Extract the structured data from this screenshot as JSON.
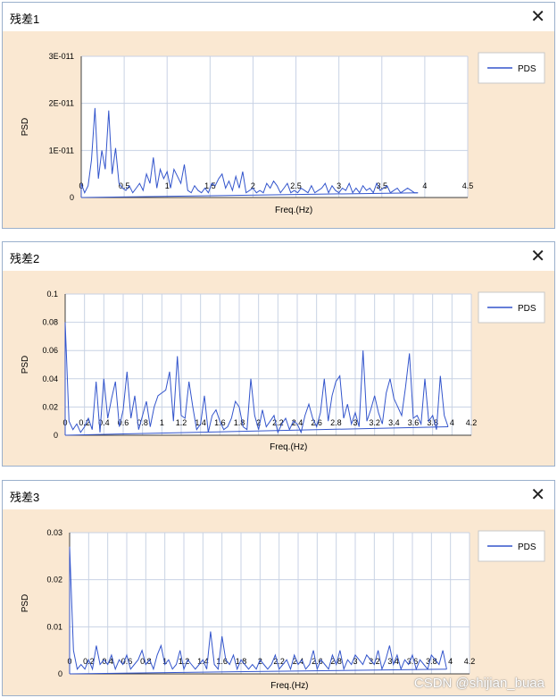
{
  "watermark": "CSDN @shijian_buaa",
  "colors": {
    "line": "#3355cc",
    "plot_bg": "#ffffff",
    "panel_bg": "#fae8d2",
    "grid": "#c8d2e4",
    "axis": "#404040"
  },
  "windows": [
    {
      "title": "残差1",
      "close_icon": "close-icon",
      "close_label": "✕"
    },
    {
      "title": "残差2",
      "close_icon": "close-icon",
      "close_label": "✕"
    },
    {
      "title": "残差3",
      "close_icon": "close-icon",
      "close_label": "✕"
    }
  ],
  "chart_data": [
    {
      "type": "line",
      "xlabel": "Freq.(Hz)",
      "ylabel": "PSD",
      "legend": "top-right",
      "grid": true,
      "xlim": [
        0,
        4.5
      ],
      "ylim": [
        0,
        3e-11
      ],
      "xticks": [
        {
          "v": 0,
          "label": "0"
        },
        {
          "v": 0.5,
          "label": "0.5"
        },
        {
          "v": 1,
          "label": "1"
        },
        {
          "v": 1.5,
          "label": "1.5"
        },
        {
          "v": 2,
          "label": "2"
        },
        {
          "v": 2.5,
          "label": "2.5"
        },
        {
          "v": 3,
          "label": "3"
        },
        {
          "v": 3.5,
          "label": "3.5"
        },
        {
          "v": 4,
          "label": "4"
        },
        {
          "v": 4.5,
          "label": "4.5"
        }
      ],
      "yticks": [
        {
          "v": 0,
          "label": "0"
        },
        {
          "v": 1e-11,
          "label": "1E-011"
        },
        {
          "v": 2e-11,
          "label": "2E-011"
        },
        {
          "v": 3e-11,
          "label": "3E-011"
        }
      ],
      "series": [
        {
          "name": "PDS",
          "x_start": 0,
          "x_step": 0.04,
          "values": [
            3e-12,
            1e-12,
            2.5e-12,
            8e-12,
            1.9e-11,
            4e-12,
            1e-11,
            6e-12,
            1.85e-11,
            5e-12,
            1.05e-11,
            3e-12,
            2e-12,
            1.5e-12,
            2.5e-12,
            1e-12,
            2e-12,
            3e-12,
            1.5e-12,
            5e-12,
            3e-12,
            8.5e-12,
            2e-12,
            6e-12,
            4e-12,
            5.5e-12,
            2e-12,
            6e-12,
            4.5e-12,
            3e-12,
            7e-12,
            1.5e-12,
            1e-12,
            2.5e-12,
            1.5e-12,
            1e-12,
            2e-12,
            1e-12,
            3e-12,
            2.5e-12,
            4e-12,
            5e-12,
            2e-12,
            3.5e-12,
            1.5e-12,
            4.5e-12,
            2e-12,
            5.5e-12,
            1e-12,
            1.5e-12,
            2e-12,
            1e-12,
            1.5e-12,
            1e-12,
            3e-12,
            2e-12,
            3.5e-12,
            2.5e-12,
            1e-12,
            2e-12,
            3e-12,
            1e-12,
            1.5e-12,
            1e-12,
            2e-12,
            1.5e-12,
            1e-12,
            2.5e-12,
            1e-12,
            1.5e-12,
            2e-12,
            3e-12,
            1e-12,
            2.5e-12,
            1.5e-12,
            1e-12,
            2e-12,
            1.5e-12,
            3e-12,
            1e-12,
            2e-12,
            1e-12,
            2.5e-12,
            1.5e-12,
            2e-12,
            1e-12,
            3e-12,
            1.5e-12,
            2e-12,
            2.5e-12,
            1e-12,
            1.5e-12,
            2e-12,
            1e-12,
            1.5e-12,
            2e-12,
            1.5e-12,
            1e-12,
            1e-12
          ]
        }
      ]
    },
    {
      "type": "line",
      "xlabel": "Freq.(Hz)",
      "ylabel": "PSD",
      "legend": "top-right",
      "grid": true,
      "xlim": [
        0,
        4.2
      ],
      "ylim": [
        0,
        0.1
      ],
      "xticks": [
        {
          "v": 0,
          "label": "0"
        },
        {
          "v": 0.2,
          "label": "0.2"
        },
        {
          "v": 0.4,
          "label": "0.4"
        },
        {
          "v": 0.6,
          "label": "0.6"
        },
        {
          "v": 0.8,
          "label": "0.8"
        },
        {
          "v": 1,
          "label": "1"
        },
        {
          "v": 1.2,
          "label": "1.2"
        },
        {
          "v": 1.4,
          "label": "1.4"
        },
        {
          "v": 1.6,
          "label": "1.6"
        },
        {
          "v": 1.8,
          "label": "1.8"
        },
        {
          "v": 2,
          "label": "2"
        },
        {
          "v": 2.2,
          "label": "2.2"
        },
        {
          "v": 2.4,
          "label": "2.4"
        },
        {
          "v": 2.6,
          "label": "2.6"
        },
        {
          "v": 2.8,
          "label": "2.8"
        },
        {
          "v": 3,
          "label": "3"
        },
        {
          "v": 3.2,
          "label": "3.2"
        },
        {
          "v": 3.4,
          "label": "3.4"
        },
        {
          "v": 3.6,
          "label": "3.6"
        },
        {
          "v": 3.8,
          "label": "3.8"
        },
        {
          "v": 4,
          "label": "4"
        },
        {
          "v": 4.2,
          "label": "4.2"
        }
      ],
      "yticks": [
        {
          "v": 0,
          "label": "0"
        },
        {
          "v": 0.02,
          "label": "0.02"
        },
        {
          "v": 0.04,
          "label": "0.04"
        },
        {
          "v": 0.06,
          "label": "0.06"
        },
        {
          "v": 0.08,
          "label": "0.08"
        },
        {
          "v": 0.1,
          "label": "0.1"
        }
      ],
      "series": [
        {
          "name": "PDS",
          "x_start": 0,
          "x_step": 0.04,
          "values": [
            0.08,
            0.01,
            0.004,
            0.008,
            0.002,
            0.006,
            0.012,
            0.004,
            0.038,
            0.002,
            0.04,
            0.012,
            0.026,
            0.038,
            0.006,
            0.018,
            0.045,
            0.012,
            0.028,
            0.004,
            0.014,
            0.024,
            0.006,
            0.02,
            0.028,
            0.03,
            0.032,
            0.045,
            0.01,
            0.056,
            0.014,
            0.012,
            0.038,
            0.02,
            0.004,
            0.008,
            0.028,
            0.002,
            0.014,
            0.018,
            0.01,
            0.004,
            0.006,
            0.012,
            0.024,
            0.02,
            0.006,
            0.004,
            0.04,
            0.014,
            0.004,
            0.018,
            0.006,
            0.01,
            0.014,
            0.002,
            0.008,
            0.012,
            0.004,
            0.01,
            0.008,
            0.002,
            0.014,
            0.022,
            0.012,
            0.006,
            0.016,
            0.04,
            0.01,
            0.028,
            0.038,
            0.042,
            0.012,
            0.022,
            0.008,
            0.016,
            0.006,
            0.06,
            0.01,
            0.018,
            0.028,
            0.016,
            0.008,
            0.03,
            0.04,
            0.026,
            0.02,
            0.014,
            0.034,
            0.058,
            0.012,
            0.014,
            0.008,
            0.04,
            0.01,
            0.014,
            0.004,
            0.042,
            0.014,
            0.006
          ]
        }
      ]
    },
    {
      "type": "line",
      "xlabel": "Freq.(Hz)",
      "ylabel": "PSD",
      "legend": "top-right",
      "grid": true,
      "xlim": [
        0,
        4.2
      ],
      "ylim": [
        0,
        0.03
      ],
      "xticks": [
        {
          "v": 0,
          "label": "0"
        },
        {
          "v": 0.2,
          "label": "0.2"
        },
        {
          "v": 0.4,
          "label": "0.4"
        },
        {
          "v": 0.6,
          "label": "0.6"
        },
        {
          "v": 0.8,
          "label": "0.8"
        },
        {
          "v": 1,
          "label": "1"
        },
        {
          "v": 1.2,
          "label": "1.2"
        },
        {
          "v": 1.4,
          "label": "1.4"
        },
        {
          "v": 1.6,
          "label": "1.6"
        },
        {
          "v": 1.8,
          "label": "1.8"
        },
        {
          "v": 2,
          "label": "2"
        },
        {
          "v": 2.2,
          "label": "2.2"
        },
        {
          "v": 2.4,
          "label": "2.4"
        },
        {
          "v": 2.6,
          "label": "2.6"
        },
        {
          "v": 2.8,
          "label": "2.8"
        },
        {
          "v": 3,
          "label": "3"
        },
        {
          "v": 3.2,
          "label": "3.2"
        },
        {
          "v": 3.4,
          "label": "3.4"
        },
        {
          "v": 3.6,
          "label": "3.6"
        },
        {
          "v": 3.8,
          "label": "3.8"
        },
        {
          "v": 4,
          "label": "4"
        },
        {
          "v": 4.2,
          "label": "4.2"
        }
      ],
      "yticks": [
        {
          "v": 0,
          "label": "0"
        },
        {
          "v": 0.01,
          "label": "0.01"
        },
        {
          "v": 0.02,
          "label": "0.02"
        },
        {
          "v": 0.03,
          "label": "0.03"
        }
      ],
      "series": [
        {
          "name": "PDS",
          "x_start": 0,
          "x_step": 0.04,
          "values": [
            0.027,
            0.005,
            0.001,
            0.002,
            0.001,
            0.003,
            0.001,
            0.006,
            0.002,
            0.003,
            0.002,
            0.004,
            0.001,
            0.003,
            0.002,
            0.004,
            0.001,
            0.002,
            0.003,
            0.005,
            0.002,
            0.003,
            0.001,
            0.004,
            0.006,
            0.002,
            0.003,
            0.001,
            0.002,
            0.005,
            0.001,
            0.003,
            0.002,
            0.001,
            0.002,
            0.003,
            0.001,
            0.009,
            0.002,
            0.001,
            0.008,
            0.003,
            0.002,
            0.004,
            0.001,
            0.003,
            0.002,
            0.001,
            0.002,
            0.001,
            0.003,
            0.002,
            0.001,
            0.002,
            0.004,
            0.001,
            0.002,
            0.003,
            0.001,
            0.004,
            0.002,
            0.003,
            0.001,
            0.002,
            0.005,
            0.001,
            0.003,
            0.002,
            0.001,
            0.004,
            0.002,
            0.005,
            0.001,
            0.003,
            0.002,
            0.004,
            0.003,
            0.002,
            0.004,
            0.003,
            0.002,
            0.005,
            0.001,
            0.003,
            0.006,
            0.002,
            0.004,
            0.001,
            0.003,
            0.002,
            0.004,
            0.001,
            0.003,
            0.002,
            0.001,
            0.004,
            0.003,
            0.002,
            0.005,
            0.001
          ]
        }
      ]
    }
  ]
}
